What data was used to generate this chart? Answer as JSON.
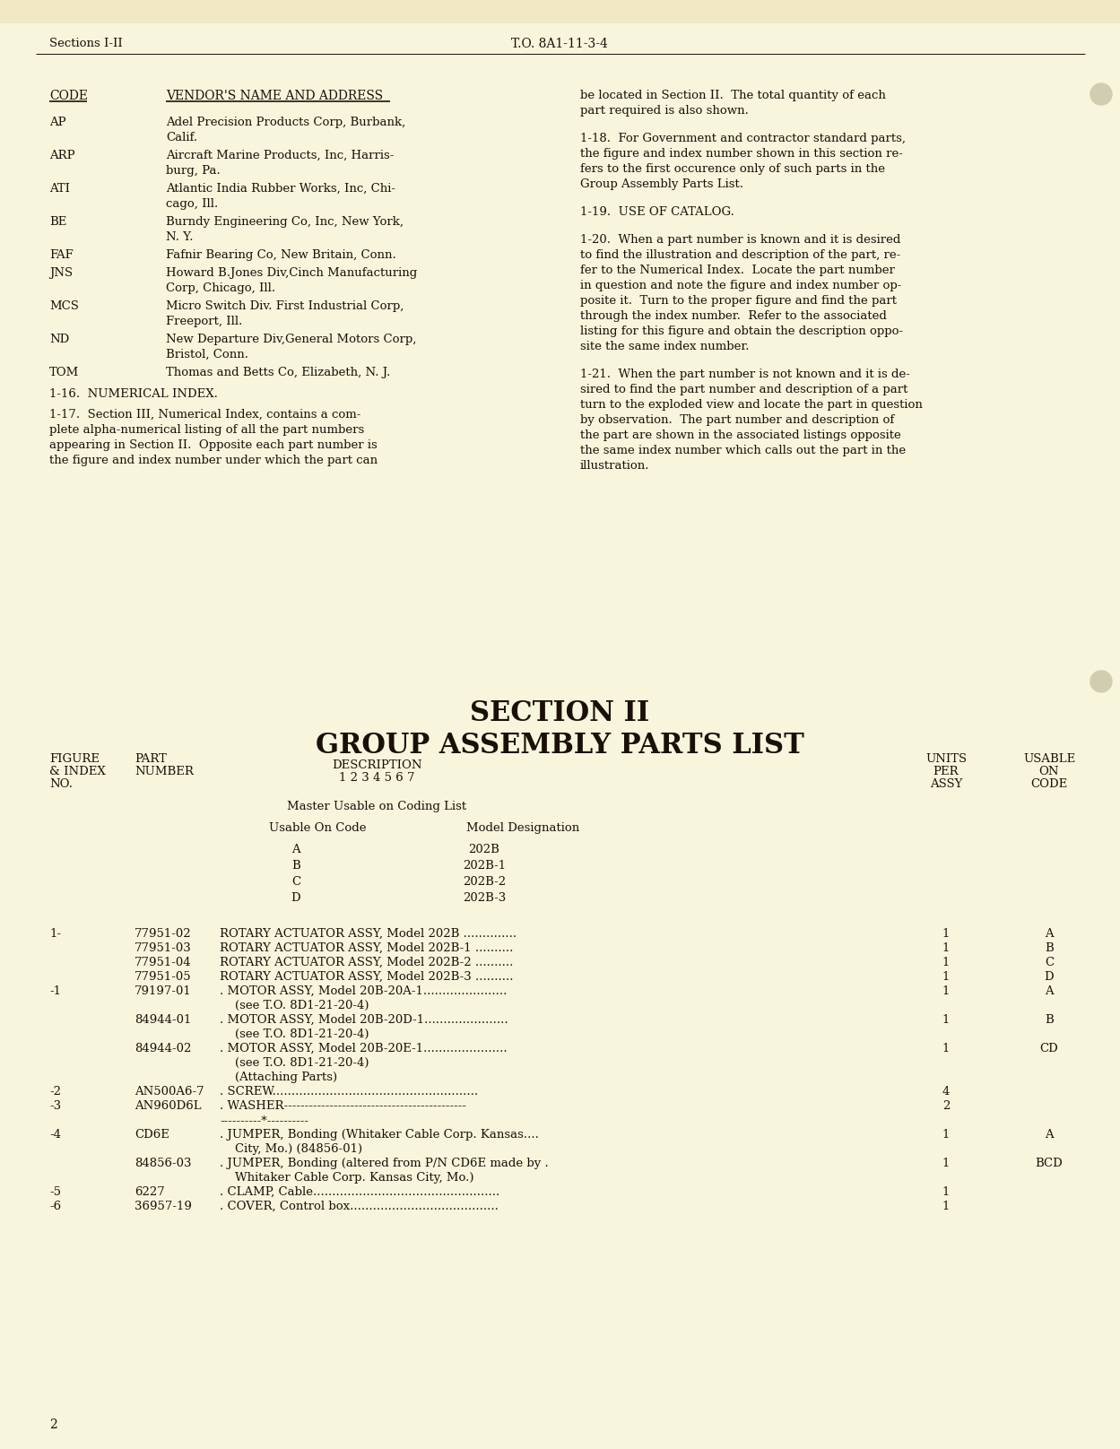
{
  "page_color": "#F7F5DC",
  "text_color": "#1a1008",
  "header_left": "Sections I-II",
  "header_center": "T.O. 8A1-11-3-4",
  "section_title_line1": "SECTION II",
  "section_title_line2": "GROUP ASSEMBLY PARTS LIST",
  "vendor_header_code": "CODE",
  "vendor_header_name": "VENDOR'S NAME AND ADDRESS",
  "vendors": [
    [
      "AP",
      "Adel Precision Products Corp, Burbank,",
      "Calif."
    ],
    [
      "ARP",
      "Aircraft Marine Products, Inc, Harris-",
      "burg, Pa."
    ],
    [
      "ATI",
      "Atlantic India Rubber Works, Inc, Chi-",
      "cago, Ill."
    ],
    [
      "BE",
      "Burndy Engineering Co, Inc, New York,",
      "N. Y."
    ],
    [
      "FAF",
      "Fafnir Bearing Co, New Britain, Conn.",
      ""
    ],
    [
      "JNS",
      "Howard B.Jones Div,Cinch Manufacturing",
      "Corp, Chicago, Ill."
    ],
    [
      "MCS",
      "Micro Switch Div. First Industrial Corp,",
      "Freeport, Ill."
    ],
    [
      "ND",
      "New Departure Div,General Motors Corp,",
      "Bristol, Conn."
    ],
    [
      "TOM",
      "Thomas and Betts Co, Elizabeth, N. J.",
      ""
    ]
  ],
  "right_col_lines": [
    [
      "be located in Section II.  The total quantity of each"
    ],
    [
      "part required is also shown."
    ],
    [
      ""
    ],
    [
      "1-18.  For Government and contractor standard parts,"
    ],
    [
      "the figure and index number shown in this section re-"
    ],
    [
      "fers to the first occurence only of such parts in the"
    ],
    [
      "Group Assembly Parts List."
    ],
    [
      ""
    ],
    [
      "1-19.  USE OF CATALOG."
    ],
    [
      ""
    ],
    [
      "1-20.  When a part number is known and it is desired"
    ],
    [
      "to find the illustration and description of the part, re-"
    ],
    [
      "fer to the Numerical Index.  Locate the part number"
    ],
    [
      "in question and note the figure and index number op-"
    ],
    [
      "posite it.  Turn to the proper figure and find the part"
    ],
    [
      "through the index number.  Refer to the associated"
    ],
    [
      "listing for this figure and obtain the description oppo-"
    ],
    [
      "site the same index number."
    ],
    [
      ""
    ],
    [
      "1-21.  When the part number is not known and it is de-"
    ],
    [
      "sired to find the part number and description of a part"
    ],
    [
      "turn to the exploded view and locate the part in question"
    ],
    [
      "by observation.  The part number and description of"
    ],
    [
      "the part are shown in the associated listings opposite"
    ],
    [
      "the same index number which calls out the part in the"
    ],
    [
      "illustration."
    ]
  ],
  "num_index_header": "1-16.  NUMERICAL INDEX.",
  "num_index_lines": [
    "1-17.  Section III, Numerical Index, contains a com-",
    "plete alpha-numerical listing of all the part numbers",
    "appearing in Section II.  Opposite each part number is",
    "the figure and index number under which the part can"
  ],
  "master_usable": "Master Usable on Coding List",
  "usable_on_code": "Usable On Code",
  "model_designation": "Model Designation",
  "code_model_pairs": [
    [
      "A",
      "202B"
    ],
    [
      "B",
      "202B-1"
    ],
    [
      "C",
      "202B-2"
    ],
    [
      "D",
      "202B-3"
    ]
  ],
  "parts_list": [
    [
      "1-",
      "77951-02",
      "ROTARY ACTUATOR ASSY, Model 202B ..............",
      "1",
      "A"
    ],
    [
      "",
      "77951-03",
      "ROTARY ACTUATOR ASSY, Model 202B-1 ..........",
      "1",
      "B"
    ],
    [
      "",
      "77951-04",
      "ROTARY ACTUATOR ASSY, Model 202B-2 ..........",
      "1",
      "C"
    ],
    [
      "",
      "77951-05",
      "ROTARY ACTUATOR ASSY, Model 202B-3 ..........",
      "1",
      "D"
    ],
    [
      "-1",
      "79197-01",
      ". MOTOR ASSY, Model 20B-20A-1......................",
      "1",
      "A"
    ],
    [
      "",
      "",
      "    (see T.O. 8D1-21-20-4)",
      "",
      ""
    ],
    [
      "",
      "84944-01",
      ". MOTOR ASSY, Model 20B-20D-1......................",
      "1",
      "B"
    ],
    [
      "",
      "",
      "    (see T.O. 8D1-21-20-4)",
      "",
      ""
    ],
    [
      "",
      "84944-02",
      ". MOTOR ASSY, Model 20B-20E-1......................",
      "1",
      "CD"
    ],
    [
      "",
      "",
      "    (see T.O. 8D1-21-20-4)",
      "",
      ""
    ],
    [
      "",
      "",
      "    (Attaching Parts)",
      "",
      ""
    ],
    [
      "-2",
      "AN500A6-7",
      ". SCREW......................................................",
      "4",
      ""
    ],
    [
      "-3",
      "AN960D6L",
      ". WASHER--------------------------------------------",
      "2",
      ""
    ],
    [
      "",
      "",
      "----------*----------",
      "",
      ""
    ],
    [
      "-4",
      "CD6E",
      ". JUMPER, Bonding (Whitaker Cable Corp. Kansas....",
      "1",
      "A"
    ],
    [
      "",
      "",
      "    City, Mo.) (84856-01)",
      "",
      ""
    ],
    [
      "",
      "84856-03",
      ". JUMPER, Bonding (altered from P/N CD6E made by .",
      "1",
      "BCD"
    ],
    [
      "",
      "",
      "    Whitaker Cable Corp. Kansas City, Mo.)",
      "",
      ""
    ],
    [
      "-5",
      "6227",
      ". CLAMP, Cable.................................................",
      "1",
      ""
    ],
    [
      "-6",
      "36957-19",
      ". COVER, Control box.......................................",
      "1",
      ""
    ]
  ],
  "page_number": "2"
}
